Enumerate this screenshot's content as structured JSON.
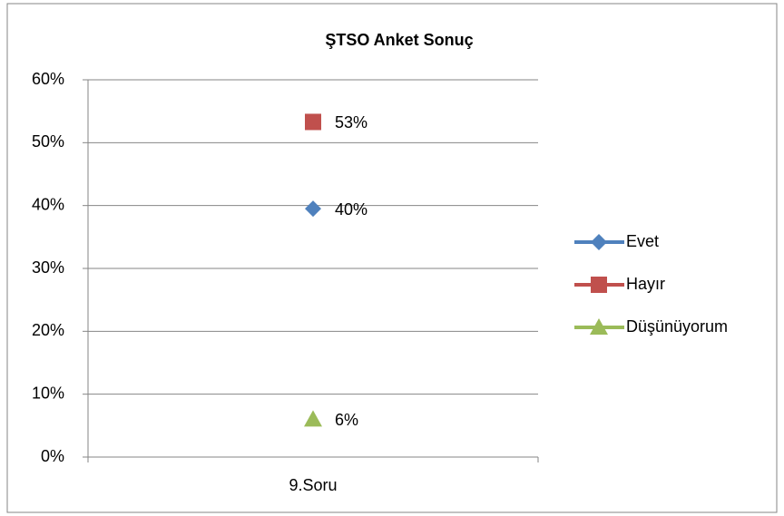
{
  "chart_data": {
    "type": "line",
    "title": "ŞTSO Anket Sonuç",
    "categories": [
      "9.Soru"
    ],
    "series": [
      {
        "name": "Evet",
        "color": "#4f81bd",
        "marker": "diamond",
        "values": [
          39.5
        ],
        "value_labels": [
          "40%"
        ]
      },
      {
        "name": "Hayır",
        "color": "#c0504d",
        "marker": "square",
        "values": [
          53.3
        ],
        "value_labels": [
          "53%"
        ]
      },
      {
        "name": "Düşünüyorum",
        "color": "#9bbb59",
        "marker": "triangle",
        "values": [
          6
        ],
        "value_labels": [
          "6%"
        ]
      }
    ],
    "ylim": [
      0,
      60
    ],
    "yticks": [
      {
        "value": 0,
        "label": "0%"
      },
      {
        "value": 10,
        "label": "10%"
      },
      {
        "value": 20,
        "label": "20%"
      },
      {
        "value": 30,
        "label": "30%"
      },
      {
        "value": 40,
        "label": "40%"
      },
      {
        "value": 50,
        "label": "50%"
      },
      {
        "value": 60,
        "label": "60%"
      }
    ],
    "grid": true,
    "legend": "right"
  }
}
